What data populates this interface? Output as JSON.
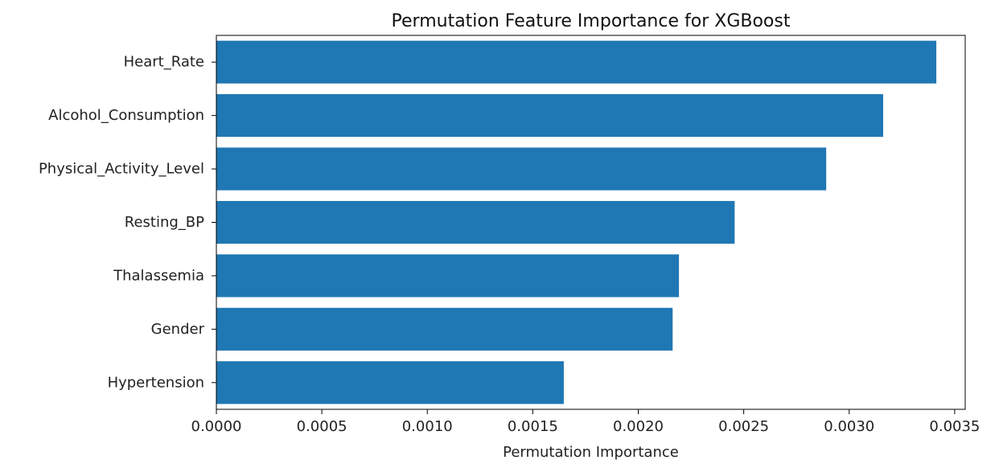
{
  "chart_data": {
    "type": "bar",
    "orientation": "horizontal",
    "title": "Permutation Feature Importance for XGBoost",
    "xlabel": "Permutation Importance",
    "ylabel": "",
    "categories": [
      "Heart_Rate",
      "Alcohol_Consumption",
      "Physical_Activity_Level",
      "Resting_BP",
      "Thalassemia",
      "Gender",
      "Hypertension"
    ],
    "values": [
      0.003413,
      0.003161,
      0.002891,
      0.002457,
      0.002193,
      0.002163,
      0.001647
    ],
    "xlim": [
      0,
      0.00355
    ],
    "xticks": [
      0,
      0.0005,
      0.001,
      0.0015,
      0.002,
      0.0025,
      0.003,
      0.0035
    ],
    "xtick_labels": [
      "0.0000",
      "0.0005",
      "0.0010",
      "0.0015",
      "0.0020",
      "0.0025",
      "0.0030",
      "0.0035"
    ],
    "grid": false,
    "bar_color": "#1f77b4"
  }
}
